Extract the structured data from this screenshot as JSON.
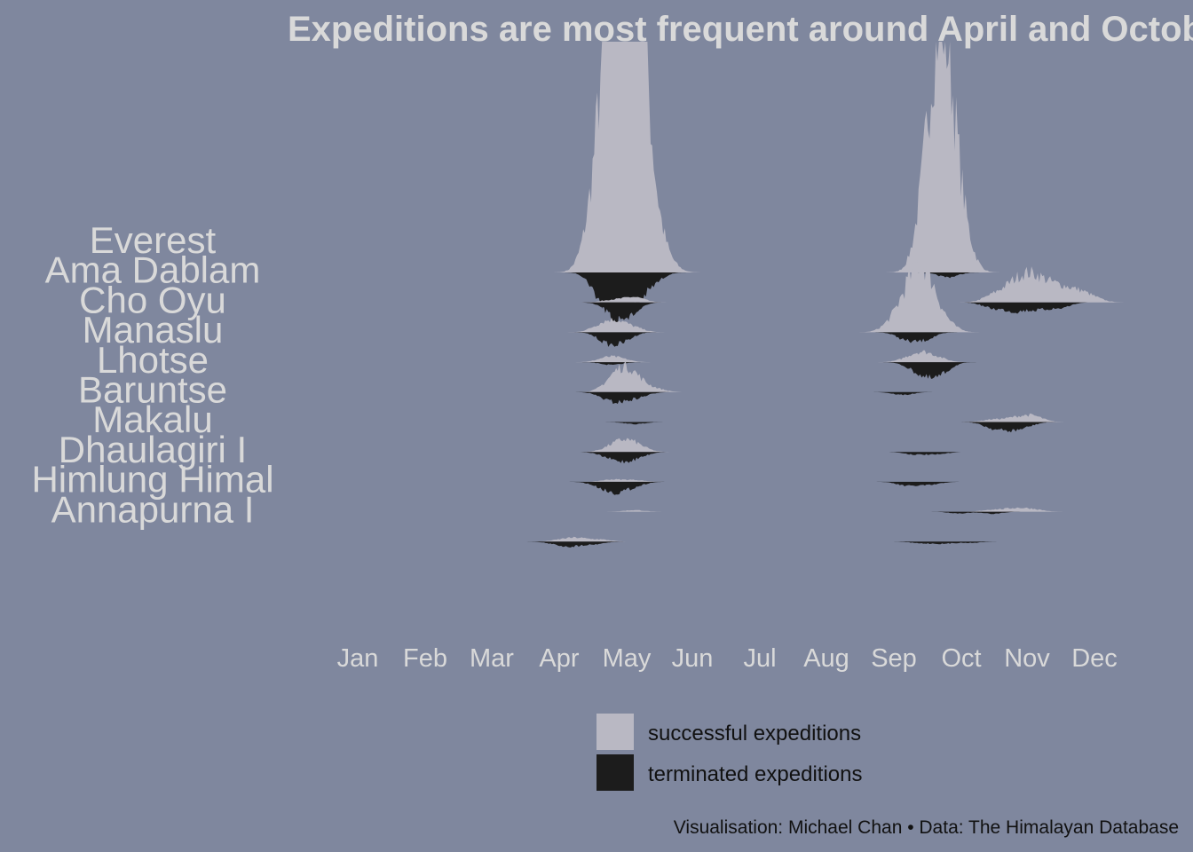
{
  "title": "Expeditions are most frequent around April and October",
  "caption": "Visualisation: Michael Chan • Data: The Himalayan Database",
  "colors": {
    "background": "#7f879e",
    "successful": "#b9b8c3",
    "terminated": "#1c1c1c",
    "text_light": "#d9d9d9",
    "text_dark": "#111111"
  },
  "legend": [
    {
      "label": "successful expeditions",
      "color": "#b9b8c3"
    },
    {
      "label": "terminated expeditions",
      "color": "#1c1c1c"
    }
  ],
  "chart_data": {
    "type": "area",
    "layout": "mirrored ridgeline (successful above baseline, terminated below)",
    "title": "Expeditions are most frequent around April and October",
    "x_axis": {
      "ticks": [
        "Jan",
        "Feb",
        "Mar",
        "Apr",
        "May",
        "Jun",
        "Jul",
        "Aug",
        "Sep",
        "Oct",
        "Nov",
        "Dec"
      ],
      "range": [
        1,
        365
      ],
      "unit": "day of year"
    },
    "peaks": [
      "Everest",
      "Ama Dablam",
      "Cho Oyu",
      "Manaslu",
      "Lhotse",
      "Baruntse",
      "Makalu",
      "Dhaulagiri I",
      "Himlung Himal",
      "Annapurna I"
    ],
    "series": [
      {
        "peak": "Everest",
        "successful": [
          [
            120,
            0.12
          ],
          [
            125,
            0.35
          ],
          [
            129,
            0.62
          ],
          [
            133,
            0.85
          ],
          [
            136,
            1.0
          ],
          [
            139,
            0.9
          ],
          [
            142,
            0.55
          ],
          [
            146,
            0.25
          ],
          [
            150,
            0.1
          ],
          [
            155,
            0.04
          ],
          [
            270,
            0.3
          ],
          [
            276,
            0.9
          ],
          [
            281,
            0.55
          ],
          [
            287,
            0.15
          ]
        ],
        "terminated": [
          [
            125,
            0.22
          ],
          [
            132,
            0.35
          ],
          [
            140,
            0.28
          ],
          [
            148,
            0.1
          ],
          [
            280,
            0.05
          ]
        ]
      },
      {
        "peak": "Ama Dablam",
        "successful": [
          [
            130,
            0.05
          ],
          [
            140,
            0.1
          ],
          [
            300,
            0.12
          ],
          [
            308,
            0.25
          ],
          [
            315,
            0.4
          ],
          [
            322,
            0.32
          ],
          [
            330,
            0.25
          ],
          [
            338,
            0.18
          ],
          [
            345,
            0.08
          ]
        ],
        "terminated": [
          [
            130,
            0.15
          ],
          [
            138,
            0.22
          ],
          [
            300,
            0.1
          ],
          [
            310,
            0.15
          ],
          [
            320,
            0.12
          ],
          [
            330,
            0.1
          ]
        ]
      },
      {
        "peak": "Cho Oyu",
        "successful": [
          [
            125,
            0.08
          ],
          [
            132,
            0.12
          ],
          [
            140,
            0.05
          ],
          [
            255,
            0.1
          ],
          [
            262,
            0.35
          ],
          [
            268,
            0.55
          ],
          [
            273,
            0.3
          ],
          [
            280,
            0.08
          ]
        ],
        "terminated": [
          [
            128,
            0.15
          ],
          [
            135,
            0.12
          ],
          [
            262,
            0.12
          ],
          [
            270,
            0.1
          ]
        ]
      },
      {
        "peak": "Manaslu",
        "successful": [
          [
            128,
            0.08
          ],
          [
            134,
            0.05
          ],
          [
            262,
            0.05
          ],
          [
            268,
            0.15
          ],
          [
            275,
            0.08
          ]
        ],
        "terminated": [
          [
            130,
            0.05
          ],
          [
            265,
            0.1
          ],
          [
            272,
            0.22
          ],
          [
            278,
            0.12
          ]
        ]
      },
      {
        "peak": "Lhotse",
        "successful": [
          [
            130,
            0.18
          ],
          [
            136,
            0.35
          ],
          [
            142,
            0.15
          ],
          [
            150,
            0.05
          ]
        ],
        "terminated": [
          [
            128,
            0.1
          ],
          [
            134,
            0.12
          ],
          [
            142,
            0.08
          ],
          [
            260,
            0.05
          ]
        ]
      },
      {
        "peak": "Baruntse",
        "successful": [
          [
            300,
            0.05
          ],
          [
            310,
            0.08
          ],
          [
            318,
            0.12
          ]
        ],
        "terminated": [
          [
            140,
            0.05
          ],
          [
            300,
            0.12
          ],
          [
            308,
            0.15
          ],
          [
            315,
            0.08
          ]
        ]
      },
      {
        "peak": "Makalu",
        "successful": [
          [
            130,
            0.1
          ],
          [
            136,
            0.2
          ],
          [
            142,
            0.1
          ]
        ],
        "terminated": [
          [
            128,
            0.08
          ],
          [
            135,
            0.15
          ],
          [
            142,
            0.08
          ],
          [
            265,
            0.05
          ],
          [
            275,
            0.05
          ]
        ]
      },
      {
        "peak": "Dhaulagiri I",
        "successful": [
          [
            130,
            0.05
          ],
          [
            140,
            0.04
          ]
        ],
        "terminated": [
          [
            125,
            0.08
          ],
          [
            132,
            0.18
          ],
          [
            140,
            0.08
          ],
          [
            262,
            0.08
          ],
          [
            272,
            0.06
          ]
        ]
      },
      {
        "peak": "Himlung Himal",
        "successful": [
          [
            140,
            0.04
          ],
          [
            300,
            0.05
          ],
          [
            310,
            0.08
          ],
          [
            318,
            0.06
          ]
        ],
        "terminated": [
          [
            285,
            0.04
          ],
          [
            300,
            0.05
          ]
        ]
      },
      {
        "peak": "Annapurna I",
        "successful": [
          [
            108,
            0.05
          ],
          [
            115,
            0.08
          ],
          [
            125,
            0.05
          ]
        ],
        "terminated": [
          [
            105,
            0.05
          ],
          [
            112,
            0.1
          ],
          [
            122,
            0.06
          ],
          [
            268,
            0.04
          ],
          [
            278,
            0.05
          ],
          [
            290,
            0.03
          ]
        ]
      }
    ]
  }
}
